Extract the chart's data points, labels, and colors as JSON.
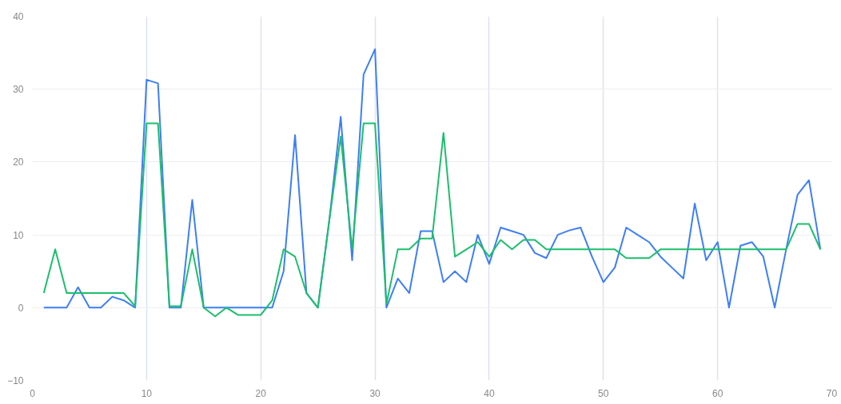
{
  "chart_data": {
    "type": "line",
    "x": [
      1,
      2,
      3,
      4,
      5,
      6,
      7,
      8,
      9,
      10,
      11,
      12,
      13,
      14,
      15,
      16,
      17,
      18,
      19,
      20,
      21,
      22,
      23,
      24,
      25,
      26,
      27,
      28,
      29,
      30,
      31,
      32,
      33,
      34,
      35,
      36,
      37,
      38,
      39,
      40,
      41,
      42,
      43,
      44,
      45,
      46,
      47,
      48,
      49,
      50,
      51,
      52,
      53,
      54,
      55,
      56,
      57,
      58,
      59,
      60,
      61,
      62,
      63,
      64,
      65,
      66,
      67,
      68,
      69
    ],
    "series": [
      {
        "color": "#3d7ef7",
        "values": [
          0,
          0,
          0,
          2.8,
          0,
          0,
          1.5,
          1,
          0,
          31.3,
          30.8,
          0,
          0,
          14.8,
          0,
          0,
          0,
          0,
          0,
          0,
          0,
          5,
          23.7,
          2,
          0,
          12,
          26.2,
          6.5,
          32,
          35.5,
          0,
          4,
          2,
          10.5,
          10.5,
          3.5,
          5,
          3.5,
          10,
          6,
          11,
          10.5,
          10,
          7.5,
          6.8,
          10,
          10.6,
          11,
          7,
          3.5,
          5.5,
          11,
          10,
          9,
          7,
          5.5,
          4,
          14.3,
          6.5,
          9,
          0,
          8.5,
          9,
          7,
          0,
          8,
          15.5,
          17.5,
          8
        ]
      },
      {
        "color": "#1bbf6b",
        "values": [
          2,
          8,
          2,
          2,
          2,
          2,
          2,
          2,
          0.2,
          25.3,
          25.3,
          0.2,
          0.2,
          8,
          0,
          -1.2,
          0,
          -1,
          -1,
          -1,
          1,
          8,
          7,
          2,
          0,
          12,
          23.5,
          8,
          25.3,
          25.3,
          0.5,
          8,
          8,
          9.5,
          9.5,
          24,
          7,
          8,
          9,
          7,
          9.3,
          8,
          9.3,
          9.3,
          8,
          8,
          8,
          8,
          8,
          8,
          8,
          6.8,
          6.8,
          6.8,
          8,
          8,
          8,
          8,
          8,
          8,
          8,
          8,
          8,
          8,
          8,
          8,
          11.5,
          11.5,
          8
        ]
      }
    ],
    "xlim": [
      0,
      70
    ],
    "xticks": [
      0,
      10,
      20,
      30,
      40,
      50,
      60,
      70
    ],
    "ylim": [
      -10,
      40
    ],
    "yticks": [
      -10,
      0,
      10,
      20,
      30,
      40
    ],
    "grid": true,
    "line_style": "solid"
  }
}
